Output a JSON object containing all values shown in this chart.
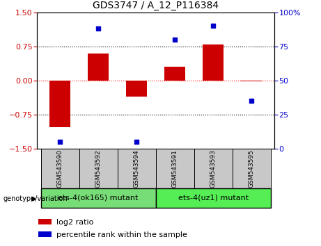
{
  "title": "GDS3747 / A_12_P116384",
  "samples": [
    "GSM543590",
    "GSM543592",
    "GSM543594",
    "GSM543591",
    "GSM543593",
    "GSM543595"
  ],
  "log2_ratio": [
    -1.02,
    0.6,
    -0.35,
    0.3,
    0.8,
    -0.02
  ],
  "percentile_rank": [
    5,
    88,
    5,
    80,
    90,
    35
  ],
  "bar_color": "#cc0000",
  "dot_color": "#0000cc",
  "ylim_left": [
    -1.5,
    1.5
  ],
  "ylim_right": [
    0,
    100
  ],
  "yticks_left": [
    -1.5,
    -0.75,
    0,
    0.75,
    1.5
  ],
  "yticks_right": [
    0,
    25,
    50,
    75,
    100
  ],
  "hlines": [
    -0.75,
    0,
    0.75
  ],
  "hline_colors": [
    "black",
    "red",
    "black"
  ],
  "hline_styles": [
    "dotted",
    "dotted",
    "dotted"
  ],
  "group1_label": "ets-4(ok165) mutant",
  "group2_label": "ets-4(uz1) mutant",
  "group1_indices": [
    0,
    1,
    2
  ],
  "group2_indices": [
    3,
    4,
    5
  ],
  "group1_color": "#77dd77",
  "group2_color": "#55cc55",
  "genotype_label": "genotype/variation",
  "legend_bar_label": "log2 ratio",
  "legend_dot_label": "percentile rank within the sample",
  "bg_color_samples": "#c8c8c8",
  "bg_color_group1": "#77dd77",
  "bg_color_group2": "#55ee55",
  "title_fontsize": 10,
  "tick_fontsize": 8,
  "sample_fontsize": 6.5,
  "group_fontsize": 8,
  "legend_fontsize": 8
}
